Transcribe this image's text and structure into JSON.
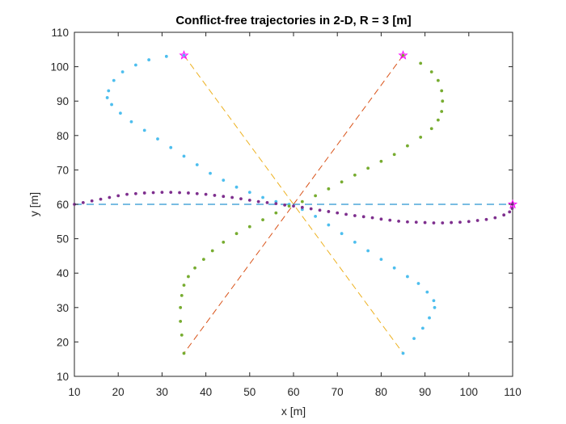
{
  "chart_data": {
    "type": "scatter",
    "title": "Conflict-free trajectories in 2-D, R = 3 [m]",
    "xlabel": "x [m]",
    "ylabel": "y [m]",
    "xlim": [
      10,
      110
    ],
    "ylim": [
      10,
      110
    ],
    "xticks": [
      "10",
      "20",
      "30",
      "40",
      "50",
      "60",
      "70",
      "80",
      "90",
      "100",
      "110"
    ],
    "yticks": [
      "10",
      "20",
      "30",
      "40",
      "50",
      "60",
      "70",
      "80",
      "90",
      "100",
      "110"
    ],
    "grid": false,
    "legend": "none",
    "reference_lines": [
      {
        "color": "#EDB120",
        "style": "dashed",
        "from": [
          35,
          103.3
        ],
        "to": [
          85,
          16.7
        ]
      },
      {
        "color": "#D95319",
        "style": "dashed",
        "from": [
          85,
          103.3
        ],
        "to": [
          35,
          16.7
        ]
      },
      {
        "color": "#4DA6D9",
        "style": "dashed",
        "from": [
          10,
          60
        ],
        "to": [
          110,
          60
        ]
      }
    ],
    "series": [
      {
        "color": "#4DBEEE",
        "points": [
          [
            35,
            103.3
          ],
          [
            31,
            103
          ],
          [
            27,
            102
          ],
          [
            24,
            100.5
          ],
          [
            21,
            98.5
          ],
          [
            19,
            96
          ],
          [
            17.8,
            93
          ],
          [
            17.5,
            91
          ],
          [
            18.5,
            89
          ],
          [
            20.5,
            86.5
          ],
          [
            23,
            84
          ],
          [
            26,
            81.5
          ],
          [
            29,
            79
          ],
          [
            32,
            76.5
          ],
          [
            35,
            74
          ],
          [
            38,
            71.5
          ],
          [
            41,
            69
          ],
          [
            44,
            67
          ],
          [
            47,
            65
          ],
          [
            50,
            63.5
          ],
          [
            53,
            62
          ],
          [
            56,
            60.8
          ],
          [
            59,
            60
          ],
          [
            62,
            58.5
          ],
          [
            65,
            56.5
          ],
          [
            68,
            54
          ],
          [
            71,
            51.5
          ],
          [
            74,
            49
          ],
          [
            77,
            46.5
          ],
          [
            80,
            44
          ],
          [
            83,
            41.5
          ],
          [
            86,
            39
          ],
          [
            88.5,
            37
          ],
          [
            90.5,
            34.5
          ],
          [
            92,
            32
          ],
          [
            92.2,
            30
          ],
          [
            91,
            27
          ],
          [
            89.5,
            24
          ],
          [
            87.5,
            21
          ],
          [
            85,
            16.7
          ]
        ]
      },
      {
        "color": "#77AC30",
        "points": [
          [
            85,
            103.3
          ],
          [
            89,
            101
          ],
          [
            91.5,
            98.5
          ],
          [
            93,
            96
          ],
          [
            93.8,
            93
          ],
          [
            94,
            90
          ],
          [
            93.8,
            87
          ],
          [
            93,
            84.5
          ],
          [
            91.5,
            82
          ],
          [
            89,
            79.5
          ],
          [
            86,
            77
          ],
          [
            83,
            74.5
          ],
          [
            80,
            72.5
          ],
          [
            77,
            70.5
          ],
          [
            74,
            68.5
          ],
          [
            71,
            66.5
          ],
          [
            68,
            64.5
          ],
          [
            65,
            62.5
          ],
          [
            62,
            60.8
          ],
          [
            59,
            59.5
          ],
          [
            56,
            57.5
          ],
          [
            53,
            55.5
          ],
          [
            50,
            53.5
          ],
          [
            47,
            51.5
          ],
          [
            44,
            49
          ],
          [
            41.5,
            46.5
          ],
          [
            39.5,
            44
          ],
          [
            37.5,
            41.5
          ],
          [
            36,
            39
          ],
          [
            35,
            36.5
          ],
          [
            34.5,
            33.5
          ],
          [
            34.2,
            30
          ],
          [
            34.2,
            26
          ],
          [
            34.5,
            22
          ],
          [
            35,
            16.7
          ]
        ]
      },
      {
        "color": "#7E2F8E",
        "points": [
          [
            10,
            60
          ],
          [
            12,
            60.5
          ],
          [
            14,
            61
          ],
          [
            16,
            61.5
          ],
          [
            18,
            62
          ],
          [
            20,
            62.5
          ],
          [
            22,
            62.9
          ],
          [
            24,
            63.1
          ],
          [
            26,
            63.3
          ],
          [
            28,
            63.4
          ],
          [
            30,
            63.5
          ],
          [
            32,
            63.5
          ],
          [
            34,
            63.4
          ],
          [
            36,
            63.3
          ],
          [
            38,
            63.1
          ],
          [
            40,
            62.9
          ],
          [
            42,
            62.6
          ],
          [
            44,
            62.3
          ],
          [
            46,
            62
          ],
          [
            48,
            61.6
          ],
          [
            50,
            61.2
          ],
          [
            52,
            60.8
          ],
          [
            54,
            60.5
          ],
          [
            56,
            60.2
          ],
          [
            58,
            59.8
          ],
          [
            60,
            59.5
          ],
          [
            62,
            59.1
          ],
          [
            64,
            58.7
          ],
          [
            66,
            58.3
          ],
          [
            68,
            57.9
          ],
          [
            70,
            57.5
          ],
          [
            72,
            57.1
          ],
          [
            74,
            56.7
          ],
          [
            76,
            56.4
          ],
          [
            78,
            56.1
          ],
          [
            80,
            55.7
          ],
          [
            82,
            55.4
          ],
          [
            84,
            55.1
          ],
          [
            86,
            54.9
          ],
          [
            88,
            54.8
          ],
          [
            90,
            54.7
          ],
          [
            92,
            54.6
          ],
          [
            94,
            54.6
          ],
          [
            96,
            54.7
          ],
          [
            98,
            54.8
          ],
          [
            100,
            55
          ],
          [
            102,
            55.3
          ],
          [
            104,
            55.6
          ],
          [
            106,
            56.1
          ],
          [
            108,
            56.9
          ],
          [
            109.3,
            57.8
          ],
          [
            109.9,
            58.8
          ],
          [
            110,
            60
          ]
        ]
      }
    ],
    "markers": {
      "symbol": "pentagram",
      "color": "#FF00FF",
      "points": [
        [
          35,
          103.3
        ],
        [
          85,
          103.3
        ],
        [
          110,
          60
        ]
      ]
    }
  }
}
